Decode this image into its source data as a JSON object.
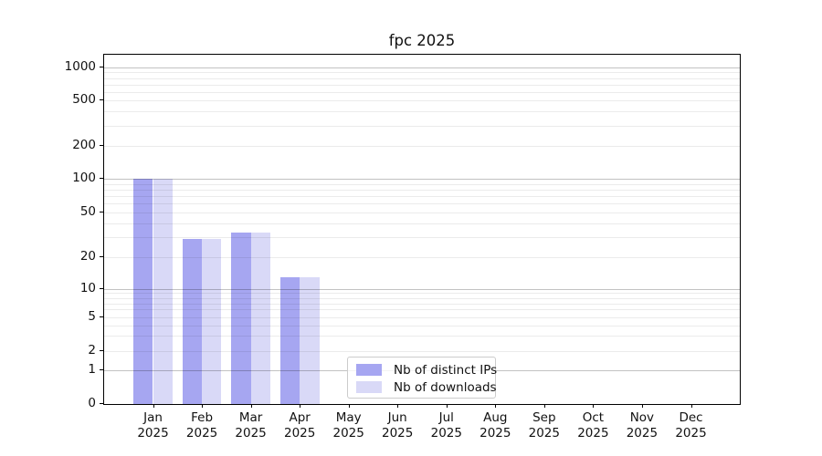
{
  "title": "fpc 2025",
  "chart_data": {
    "type": "bar",
    "title": "fpc 2025",
    "categories": [
      "Jan 2025",
      "Feb 2025",
      "Mar 2025",
      "Apr 2025",
      "May 2025",
      "Jun 2025",
      "Jul 2025",
      "Aug 2025",
      "Sep 2025",
      "Oct 2025",
      "Nov 2025",
      "Dec 2025"
    ],
    "month_names": [
      "Jan",
      "Feb",
      "Mar",
      "Apr",
      "May",
      "Jun",
      "Jul",
      "Aug",
      "Sep",
      "Oct",
      "Nov",
      "Dec"
    ],
    "year_label": "2025",
    "series": [
      {
        "name": "Nb of distinct IPs",
        "color": "#a6a6f1",
        "values": [
          100,
          29,
          33,
          13,
          0,
          0,
          0,
          0,
          0,
          0,
          0,
          0
        ]
      },
      {
        "name": "Nb of downloads",
        "color": "#d9d9f7",
        "values": [
          100,
          29,
          33,
          13,
          0,
          0,
          0,
          0,
          0,
          0,
          0,
          0
        ]
      }
    ],
    "y_axis": {
      "scale": "symlog",
      "ylim": [
        0,
        1300
      ],
      "ticks": [
        {
          "v": 0,
          "label": "0",
          "f": 1.0
        },
        {
          "v": 1,
          "label": "1",
          "f": 0.9039
        },
        {
          "v": 2,
          "label": "2",
          "f": 0.8486
        },
        {
          "v": 5,
          "label": "5",
          "f": 0.7506
        },
        {
          "v": 10,
          "label": "10",
          "f": 0.6701
        },
        {
          "v": 20,
          "label": "20",
          "f": 0.5792
        },
        {
          "v": 50,
          "label": "50",
          "f": 0.4519
        },
        {
          "v": 100,
          "label": "100",
          "f": 0.3551
        },
        {
          "v": 200,
          "label": "200",
          "f": 0.2616
        },
        {
          "v": 500,
          "label": "500",
          "f": 0.1309
        },
        {
          "v": 1000,
          "label": "1000",
          "f": 0.0364
        }
      ]
    },
    "grid": true,
    "legend_position": "lower-center-left"
  },
  "colors": {
    "bar_distinct_ips": "#a6a6f1",
    "bar_downloads": "#d9d9f7",
    "grid_major": "rgba(0,0,0,0.24)",
    "grid_minor": "rgba(0,0,0,0.08)",
    "spine": "#000000"
  }
}
